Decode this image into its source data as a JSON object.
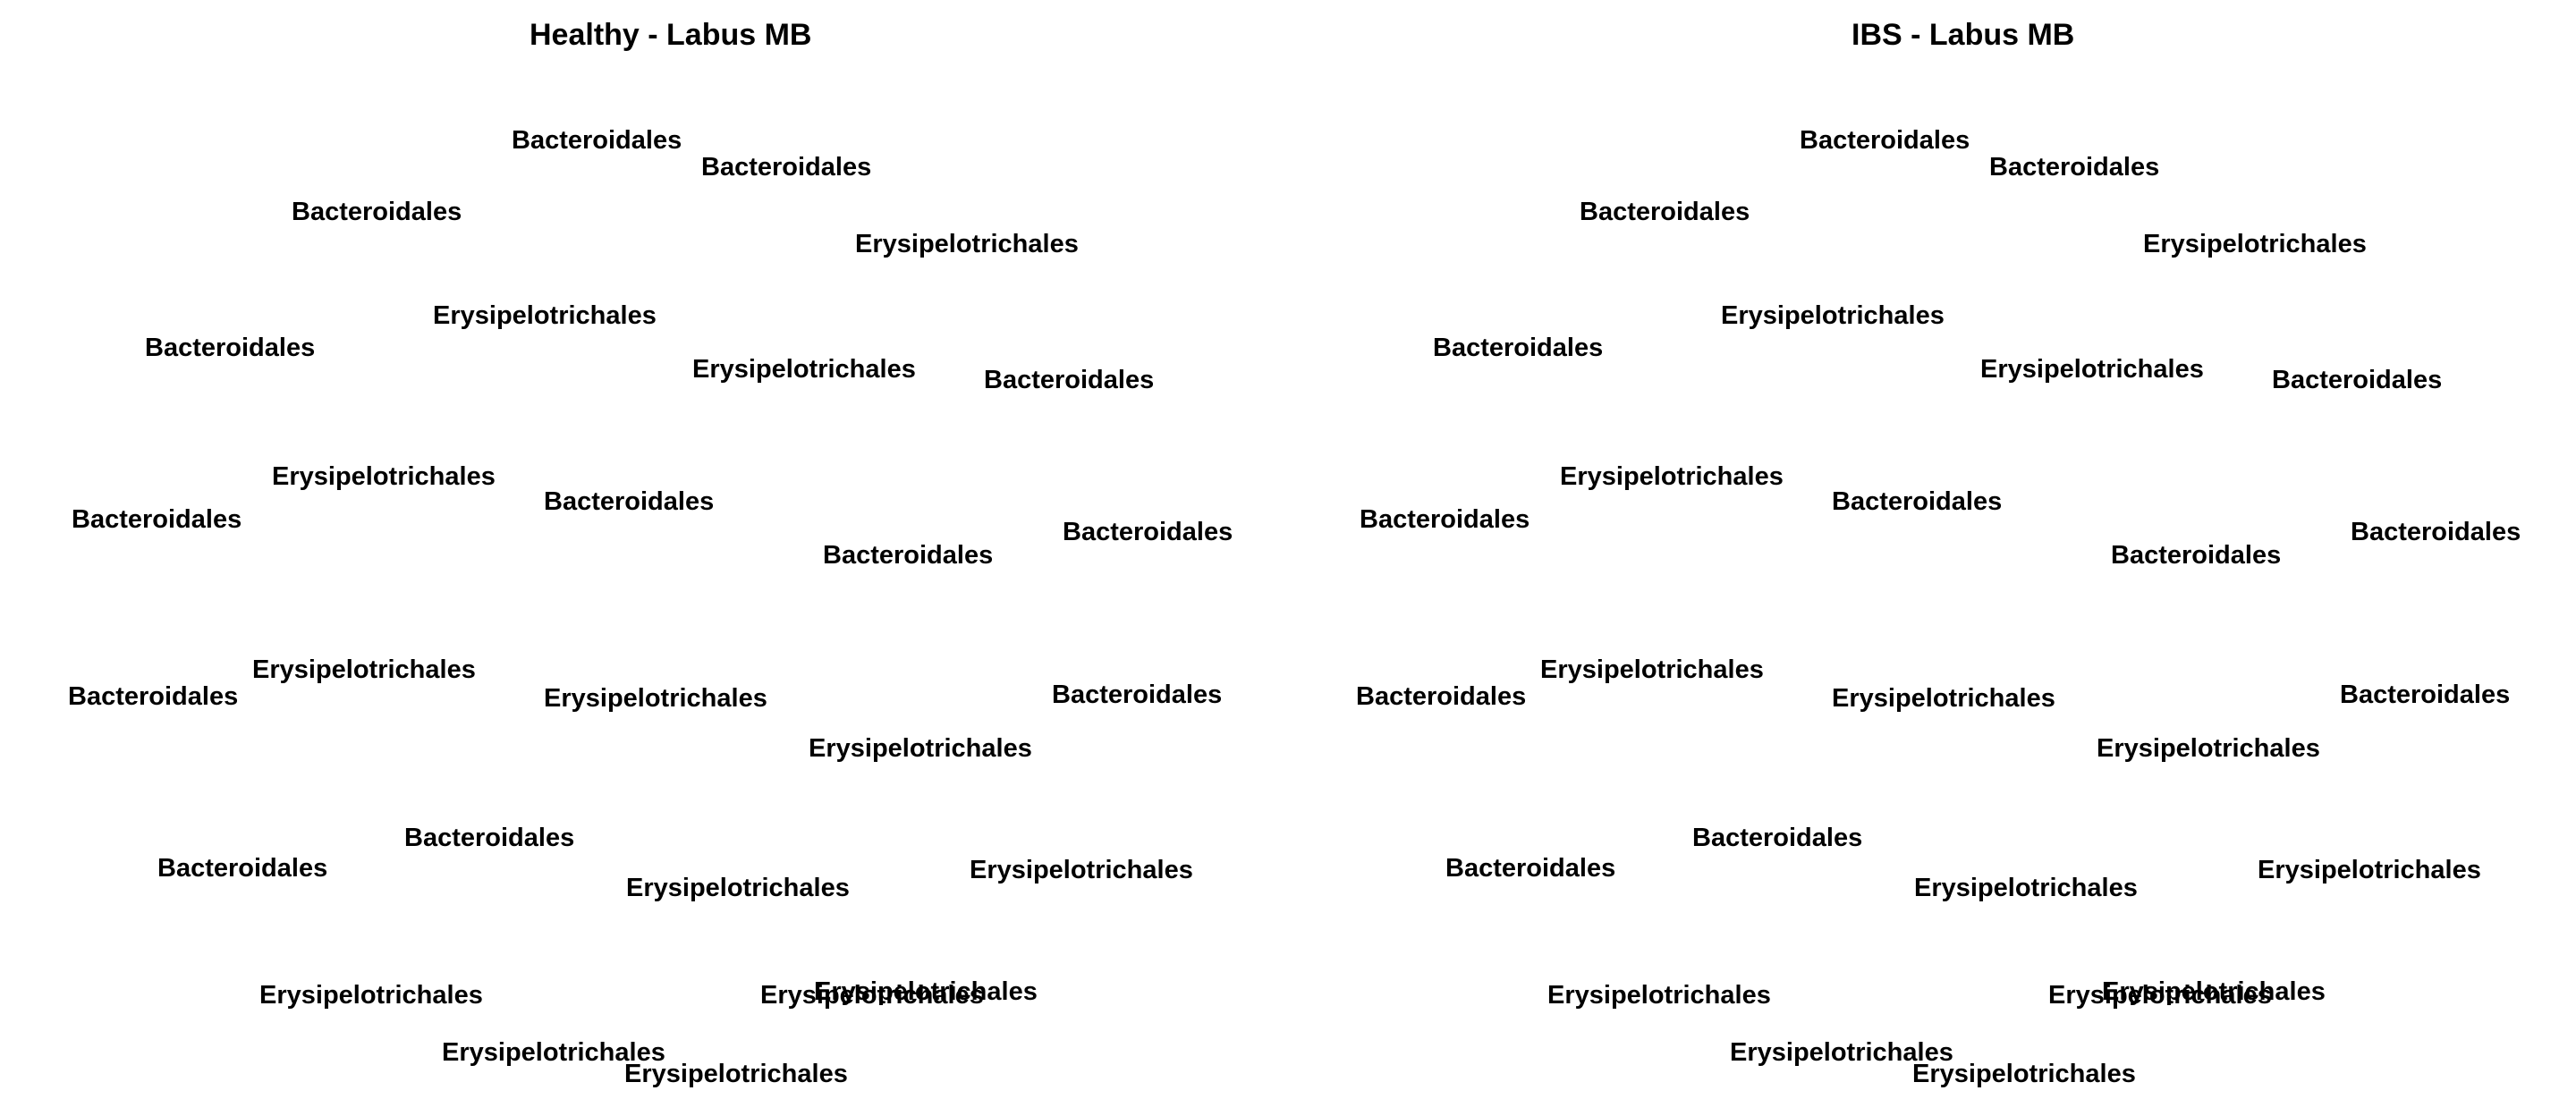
{
  "panels": [
    {
      "title": "Healthy - Labus MB",
      "nodes": [
        "Bacteroidales",
        "Bacteroidales",
        "Bacteroidales",
        "Erysipelotrichales",
        "Erysipelotrichales",
        "Bacteroidales",
        "Erysipelotrichales",
        "Bacteroidales",
        "Erysipelotrichales",
        "Bacteroidales",
        "Bacteroidales",
        "Bacteroidales",
        "Bacteroidales",
        "Erysipelotrichales",
        "Bacteroidales",
        "Erysipelotrichales",
        "Bacteroidales",
        "Erysipelotrichales",
        "Bacteroidales",
        "Bacteroidales",
        "Erysipelotrichales",
        "Erysipelotrichales",
        "Erysipelotrichales",
        "Erysipelotrichales",
        "Erysipelotrichales",
        "Erysipelotrichales",
        "Erysipelotrichales"
      ]
    },
    {
      "title": "IBS - Labus MB",
      "nodes": [
        "Bacteroidales",
        "Bacteroidales",
        "Bacteroidales",
        "Erysipelotrichales",
        "Erysipelotrichales",
        "Bacteroidales",
        "Erysipelotrichales",
        "Bacteroidales",
        "Erysipelotrichales",
        "Bacteroidales",
        "Bacteroidales",
        "Bacteroidales",
        "Bacteroidales",
        "Erysipelotrichales",
        "Bacteroidales",
        "Erysipelotrichales",
        "Bacteroidales",
        "Erysipelotrichales",
        "Bacteroidales",
        "Bacteroidales",
        "Erysipelotrichales",
        "Erysipelotrichales",
        "Erysipelotrichales",
        "Erysipelotrichales",
        "Erysipelotrichales",
        "Erysipelotrichales",
        "Erysipelotrichales"
      ]
    }
  ]
}
